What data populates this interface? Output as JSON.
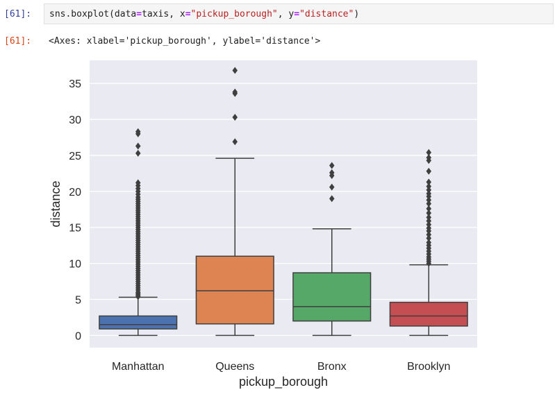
{
  "input_cell": {
    "prompt": "[61]:",
    "code_parts": [
      "sns.boxplot(data",
      "=",
      "taxis, x",
      "=",
      "\"pickup_borough\"",
      ", y",
      "=",
      "\"distance\"",
      ")"
    ]
  },
  "output_cell": {
    "prompt": "[61]:",
    "text": "<Axes: xlabel='pickup_borough', ylabel='distance'>"
  },
  "colors": {
    "plot_bg": "#eaeaf2",
    "grid": "#ffffff",
    "edge": "#3f3f3f",
    "prompt_in": "#303f9f",
    "prompt_out": "#d84315"
  },
  "chart_data": {
    "type": "box",
    "title": "",
    "xlabel": "pickup_borough",
    "ylabel": "distance",
    "ylim": [
      -1.7,
      38.2
    ],
    "yticks": [
      0,
      5,
      10,
      15,
      20,
      25,
      30,
      35
    ],
    "grid": true,
    "categories": [
      "Manhattan",
      "Queens",
      "Bronx",
      "Brooklyn"
    ],
    "boxes": [
      {
        "name": "Manhattan",
        "color": "#4c72b0",
        "min": 0,
        "q1": 0.9,
        "median": 1.5,
        "q3": 2.7,
        "max": 5.3,
        "outliers": [
          5.4,
          5.6,
          5.8,
          6.0,
          6.3,
          6.6,
          6.9,
          7.2,
          7.5,
          7.8,
          8.1,
          8.4,
          8.7,
          9.0,
          9.3,
          9.6,
          9.9,
          10.2,
          10.5,
          10.8,
          11.1,
          11.4,
          11.7,
          12.0,
          12.3,
          12.6,
          12.9,
          13.2,
          13.5,
          13.8,
          14.1,
          14.4,
          14.7,
          15.0,
          15.3,
          15.6,
          15.9,
          16.2,
          16.5,
          16.8,
          17.1,
          17.4,
          17.7,
          18.0,
          18.3,
          18.6,
          18.9,
          19.2,
          19.6,
          20.0,
          20.4,
          20.8,
          21.2,
          25.3,
          26.3,
          28.0,
          28.3
        ]
      },
      {
        "name": "Queens",
        "color": "#dd8452",
        "min": 0,
        "q1": 1.6,
        "median": 6.2,
        "q3": 11.0,
        "max": 24.6,
        "outliers": [
          26.9,
          30.3,
          33.6,
          33.8,
          36.8
        ]
      },
      {
        "name": "Bronx",
        "color": "#55a868",
        "min": 0,
        "q1": 2.0,
        "median": 4.0,
        "q3": 8.7,
        "max": 14.8,
        "outliers": [
          19.0,
          20.6,
          22.2,
          22.6,
          23.6
        ]
      },
      {
        "name": "Brooklyn",
        "color": "#c44e52",
        "min": 0,
        "q1": 1.3,
        "median": 2.7,
        "q3": 4.6,
        "max": 9.8,
        "outliers": [
          10.0,
          10.3,
          10.6,
          10.9,
          11.3,
          11.7,
          12.1,
          12.5,
          12.9,
          13.5,
          14.0,
          14.5,
          14.9,
          15.4,
          15.9,
          16.4,
          17.0,
          17.6,
          18.3,
          18.8,
          19.3,
          19.7,
          20.2,
          20.7,
          21.3,
          22.8,
          24.3,
          24.7,
          25.4
        ]
      }
    ]
  }
}
